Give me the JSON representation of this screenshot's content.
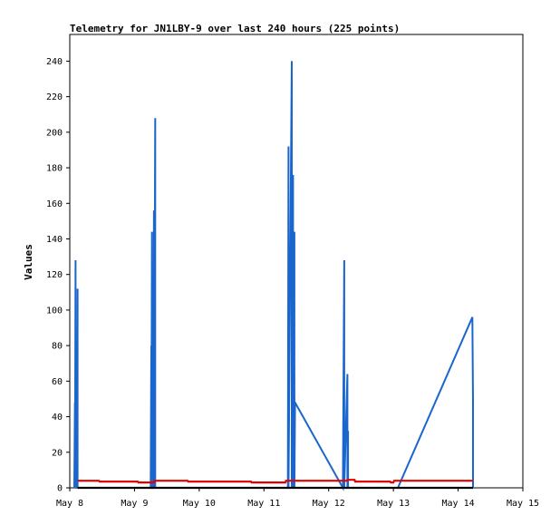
{
  "chart_data": {
    "type": "line",
    "title": "Telemetry for JN1LBY-9 over last 240 hours (225 points)",
    "xlabel": "",
    "ylabel": "Values",
    "x_ticks": [
      "May 8",
      "May 9",
      "May 10",
      "May 11",
      "May 12",
      "May 13",
      "May 14",
      "May 15"
    ],
    "xlim": [
      "May 8",
      "May 15"
    ],
    "ylim": [
      0,
      255
    ],
    "y_ticks": [
      0,
      20,
      40,
      60,
      80,
      100,
      120,
      140,
      160,
      180,
      200,
      220,
      240
    ],
    "grid": false,
    "series": [
      {
        "color": "#1a66cc",
        "points": [
          [
            8.07,
            0
          ],
          [
            8.08,
            48
          ],
          [
            8.08,
            0
          ],
          [
            8.09,
            128
          ],
          [
            8.09,
            0
          ],
          [
            8.11,
            17
          ],
          [
            8.11,
            0
          ],
          [
            8.12,
            112
          ],
          [
            8.12,
            0
          ],
          [
            9.25,
            0
          ],
          [
            9.26,
            80
          ],
          [
            9.26,
            0
          ],
          [
            9.27,
            144
          ],
          [
            9.27,
            0
          ],
          [
            9.29,
            52
          ],
          [
            9.29,
            0
          ],
          [
            9.3,
            156
          ],
          [
            9.3,
            0
          ],
          [
            9.32,
            208
          ],
          [
            9.32,
            0
          ],
          [
            11.37,
            0
          ],
          [
            11.38,
            192
          ],
          [
            11.38,
            0
          ],
          [
            11.43,
            240
          ],
          [
            11.43,
            0
          ],
          [
            11.45,
            176
          ],
          [
            11.45,
            0
          ],
          [
            11.47,
            144
          ],
          [
            11.47,
            0
          ],
          [
            11.48,
            48
          ],
          [
            12.22,
            0
          ],
          [
            12.24,
            128
          ],
          [
            12.24,
            0
          ],
          [
            12.29,
            64
          ],
          [
            12.29,
            0
          ],
          [
            12.3,
            32
          ],
          [
            12.3,
            0
          ],
          [
            13.07,
            0
          ],
          [
            14.22,
            96
          ],
          [
            14.23,
            48
          ],
          [
            14.23,
            0
          ]
        ]
      },
      {
        "color": "#e00000",
        "points": [
          [
            8.12,
            4
          ],
          [
            8.45,
            4
          ],
          [
            8.46,
            3.5
          ],
          [
            9.05,
            3.5
          ],
          [
            9.06,
            3
          ],
          [
            9.3,
            3
          ],
          [
            9.31,
            4
          ],
          [
            9.82,
            4
          ],
          [
            9.83,
            3.5
          ],
          [
            10.8,
            3.5
          ],
          [
            10.81,
            3
          ],
          [
            11.33,
            3
          ],
          [
            11.34,
            4
          ],
          [
            12.28,
            4
          ],
          [
            12.29,
            4.5
          ],
          [
            12.4,
            4.5
          ],
          [
            12.41,
            3.5
          ],
          [
            12.95,
            3.5
          ],
          [
            12.96,
            3
          ],
          [
            13.0,
            3
          ],
          [
            13.01,
            4
          ],
          [
            14.23,
            4
          ]
        ]
      },
      {
        "color": "#000000",
        "points": [
          [
            8.12,
            0
          ],
          [
            14.23,
            0
          ]
        ]
      }
    ]
  }
}
